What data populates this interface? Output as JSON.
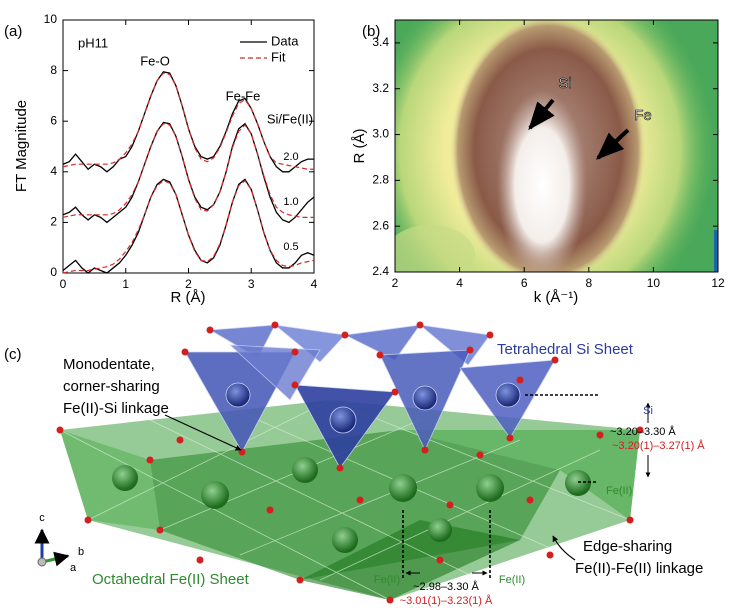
{
  "chart_data": [
    {
      "type": "line",
      "panel_label": "(a)",
      "xlabel": "R (Å)",
      "ylabel": "FT Magnitude",
      "xlim": [
        0,
        4
      ],
      "xticks": [
        0,
        1,
        2,
        3,
        4
      ],
      "ylim": [
        0,
        10
      ],
      "yticks": [
        0,
        2,
        4,
        6,
        8,
        10
      ],
      "annotations": [
        "pH11",
        "Fe-O",
        "Fe-Fe",
        "Si/Fe(II)"
      ],
      "curve_labels": [
        "2.0",
        "1.0",
        "0.5"
      ],
      "x": [
        0,
        0.1,
        0.2,
        0.3,
        0.4,
        0.5,
        0.6,
        0.7,
        0.8,
        0.9,
        1,
        1.1,
        1.2,
        1.3,
        1.4,
        1.5,
        1.6,
        1.7,
        1.8,
        1.9,
        2,
        2.1,
        2.2,
        2.3,
        2.4,
        2.5,
        2.6,
        2.7,
        2.8,
        2.9,
        3,
        3.1,
        3.2,
        3.3,
        3.4,
        3.5,
        3.6,
        3.7,
        3.8,
        3.9,
        4
      ],
      "series": [
        {
          "name": "Data",
          "color": "#000000",
          "dash": false,
          "values": [
            4.3,
            4.4,
            4.7,
            4.4,
            4.1,
            4.3,
            4.2,
            4.0,
            4.2,
            4.5,
            4.6,
            5.0,
            5.6,
            6.3,
            7.0,
            7.6,
            7.95,
            7.9,
            7.4,
            6.6,
            5.7,
            5.0,
            4.6,
            4.5,
            4.6,
            5.0,
            5.6,
            6.3,
            6.8,
            6.9,
            6.5,
            5.9,
            5.2,
            4.6,
            4.2,
            4.0,
            4.0,
            4.2,
            4.4,
            4.5,
            4.5
          ]
        },
        {
          "name": "Fit",
          "color": "#d42a2a",
          "dash": true,
          "values": [
            4.2,
            4.25,
            4.3,
            4.3,
            4.3,
            4.3,
            4.3,
            4.3,
            4.35,
            4.5,
            4.75,
            5.1,
            5.6,
            6.3,
            7.0,
            7.6,
            7.9,
            7.85,
            7.4,
            6.6,
            5.7,
            4.95,
            4.5,
            4.4,
            4.55,
            4.95,
            5.55,
            6.2,
            6.7,
            6.85,
            6.5,
            5.9,
            5.2,
            4.6,
            4.35,
            4.3,
            4.25,
            4.2,
            4.15,
            4.1,
            4.1
          ]
        },
        {
          "name": "Data",
          "color": "#000000",
          "dash": false,
          "values": [
            2.3,
            2.4,
            2.6,
            2.3,
            2.1,
            2.3,
            2.2,
            2.0,
            2.2,
            2.4,
            2.6,
            3.0,
            3.6,
            4.3,
            5.0,
            5.6,
            5.95,
            5.9,
            5.4,
            4.6,
            3.7,
            3.0,
            2.6,
            2.5,
            2.7,
            3.2,
            4.0,
            5.0,
            5.7,
            5.9,
            5.5,
            4.7,
            3.8,
            3.0,
            2.4,
            2.1,
            2.0,
            2.2,
            2.5,
            2.8,
            3.0
          ]
        },
        {
          "name": "Fit",
          "color": "#d42a2a",
          "dash": true,
          "values": [
            2.2,
            2.25,
            2.3,
            2.3,
            2.3,
            2.3,
            2.3,
            2.3,
            2.35,
            2.5,
            2.75,
            3.1,
            3.6,
            4.3,
            5.0,
            5.6,
            5.9,
            5.85,
            5.4,
            4.6,
            3.7,
            2.95,
            2.5,
            2.45,
            2.7,
            3.2,
            4.0,
            4.95,
            5.6,
            5.85,
            5.5,
            4.7,
            3.85,
            3.1,
            2.6,
            2.4,
            2.3,
            2.25,
            2.2,
            2.2,
            2.2
          ]
        },
        {
          "name": "Data",
          "color": "#000000",
          "dash": false,
          "values": [
            0.1,
            0.3,
            0.5,
            0.2,
            0.0,
            0.2,
            0.1,
            0.0,
            0.2,
            0.4,
            0.7,
            1.1,
            1.6,
            2.3,
            3.0,
            3.5,
            3.7,
            3.6,
            3.1,
            2.3,
            1.5,
            0.9,
            0.5,
            0.4,
            0.6,
            1.1,
            1.9,
            2.8,
            3.5,
            3.7,
            3.3,
            2.5,
            1.6,
            0.9,
            0.4,
            0.2,
            0.2,
            0.4,
            0.7,
            0.8,
            0.7
          ]
        },
        {
          "name": "Fit",
          "color": "#d42a2a",
          "dash": true,
          "values": [
            0.0,
            0.05,
            0.1,
            0.1,
            0.1,
            0.15,
            0.2,
            0.25,
            0.35,
            0.55,
            0.85,
            1.2,
            1.7,
            2.3,
            3.0,
            3.45,
            3.65,
            3.55,
            3.1,
            2.3,
            1.5,
            0.85,
            0.5,
            0.45,
            0.65,
            1.15,
            1.9,
            2.8,
            3.45,
            3.65,
            3.3,
            2.5,
            1.6,
            0.9,
            0.5,
            0.3,
            0.25,
            0.3,
            0.4,
            0.45,
            0.5
          ]
        }
      ]
    },
    {
      "type": "heatmap",
      "panel_label": "(b)",
      "xlabel": "k (Å⁻¹)",
      "ylabel": "R (Å)",
      "xlim": [
        2,
        12
      ],
      "xticks": [
        2,
        4,
        6,
        8,
        10,
        12
      ],
      "ylim": [
        2.4,
        3.5
      ],
      "yticks": [
        2.4,
        2.6,
        2.8,
        {
          "value": 3,
          "label": "3.0"
        },
        3.2,
        3.4
      ],
      "annotations": [
        "Si",
        "Fe"
      ]
    }
  ],
  "diagram": {
    "panel_label": "(c)",
    "si_sheet": "Tetrahedral Si Sheet",
    "monodentate": [
      "Monodentate,",
      "corner-sharing",
      "Fe(II)-Si linkage"
    ],
    "si_label": "Si",
    "si_fe_range": "~3.20–3.30 Å",
    "si_fe_fit": "~3.20(1)–3.27(1) Å",
    "fe_label_right": "Fe(II)",
    "edge_sharing": [
      "Edge-sharing",
      "Fe(II)-Fe(II) linkage"
    ],
    "fe_sheet": "Octahedral Fe(II) Sheet",
    "fe_label_a": "Fe(II)",
    "fe_label_b": "Fe(II)",
    "fe_fe_range": "~2.98–3.30 Å",
    "fe_fe_fit": "~3.01(1)–3.23(1) Å",
    "axes": [
      "c",
      "b",
      "a"
    ]
  }
}
